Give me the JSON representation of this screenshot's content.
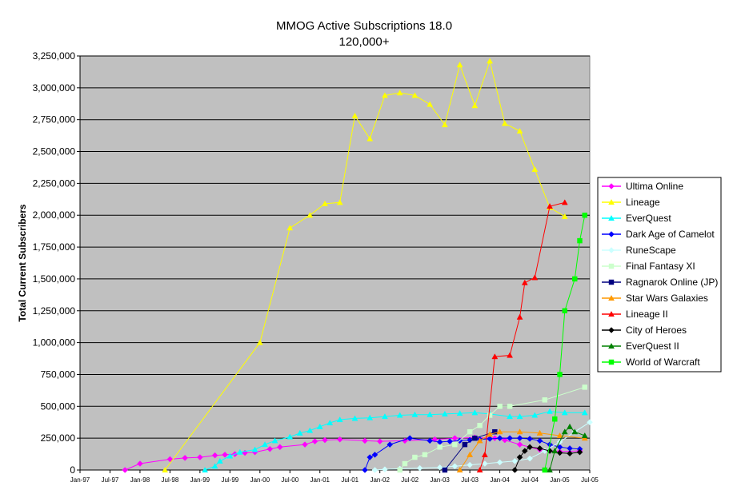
{
  "chart_data": {
    "type": "line",
    "title": "MMOG Active Subscriptions 18.0",
    "subtitle": "120,000+",
    "xlabel": "",
    "ylabel": "Total Current Subscribers",
    "ylim": [
      0,
      3250000
    ],
    "xlim": [
      "1997-01",
      "2005-07"
    ],
    "y_ticks": [
      {
        "value": 0,
        "label": "0"
      },
      {
        "value": 250000,
        "label": "250,000"
      },
      {
        "value": 500000,
        "label": "500,000"
      },
      {
        "value": 750000,
        "label": "750,000"
      },
      {
        "value": 1000000,
        "label": "1,000,000"
      },
      {
        "value": 1250000,
        "label": "1,250,000"
      },
      {
        "value": 1500000,
        "label": "1,500,000"
      },
      {
        "value": 1750000,
        "label": "1,750,000"
      },
      {
        "value": 2000000,
        "label": "2,000,000"
      },
      {
        "value": 2250000,
        "label": "2,250,000"
      },
      {
        "value": 2500000,
        "label": "2,500,000"
      },
      {
        "value": 2750000,
        "label": "2,750,000"
      },
      {
        "value": 3000000,
        "label": "3,000,000"
      },
      {
        "value": 3250000,
        "label": "3,250,000"
      }
    ],
    "x_ticks": [
      {
        "value": "1997-01",
        "label": "Jan-97"
      },
      {
        "value": "1997-07",
        "label": "Jul-97"
      },
      {
        "value": "1998-01",
        "label": "Jan-98"
      },
      {
        "value": "1998-07",
        "label": "Jul-98"
      },
      {
        "value": "1999-01",
        "label": "Jan-99"
      },
      {
        "value": "1999-07",
        "label": "Jul-99"
      },
      {
        "value": "2000-01",
        "label": "Jan-00"
      },
      {
        "value": "2000-07",
        "label": "Jul-00"
      },
      {
        "value": "2001-01",
        "label": "Jan-01"
      },
      {
        "value": "2001-07",
        "label": "Jul-01"
      },
      {
        "value": "2002-01",
        "label": "Jan-02"
      },
      {
        "value": "2002-07",
        "label": "Jul-02"
      },
      {
        "value": "2003-01",
        "label": "Jan-03"
      },
      {
        "value": "2003-07",
        "label": "Jul-03"
      },
      {
        "value": "2004-01",
        "label": "Jan-04"
      },
      {
        "value": "2004-07",
        "label": "Jul-04"
      },
      {
        "value": "2005-01",
        "label": "Jan-05"
      },
      {
        "value": "2005-07",
        "label": "Jul-05"
      }
    ],
    "grid": "horizontal",
    "legend_position": "right",
    "plot_background": "#c0c0c0",
    "series": [
      {
        "name": "Ultima Online",
        "color": "#ff00ff",
        "marker": "diamond",
        "points": [
          [
            "1997-10",
            0
          ],
          [
            "1998-01",
            50000
          ],
          [
            "1998-07",
            85000
          ],
          [
            "1998-10",
            95000
          ],
          [
            "1999-01",
            100000
          ],
          [
            "1999-04",
            115000
          ],
          [
            "1999-06",
            120000
          ],
          [
            "1999-08",
            125000
          ],
          [
            "1999-10",
            135000
          ],
          [
            "1999-12",
            140000
          ],
          [
            "2000-03",
            165000
          ],
          [
            "2000-05",
            180000
          ],
          [
            "2000-10",
            200000
          ],
          [
            "2000-12",
            225000
          ],
          [
            "2001-02",
            235000
          ],
          [
            "2001-05",
            240000
          ],
          [
            "2001-10",
            230000
          ],
          [
            "2002-01",
            225000
          ],
          [
            "2002-06",
            230000
          ],
          [
            "2002-12",
            240000
          ],
          [
            "2003-04",
            250000
          ],
          [
            "2003-08",
            255000
          ],
          [
            "2003-12",
            250000
          ],
          [
            "2004-02",
            235000
          ],
          [
            "2004-05",
            200000
          ],
          [
            "2004-09",
            160000
          ],
          [
            "2005-01",
            145000
          ],
          [
            "2005-05",
            150000
          ]
        ]
      },
      {
        "name": "Lineage",
        "color": "#ffff00",
        "marker": "triangle",
        "points": [
          [
            "1998-06",
            0
          ],
          [
            "2000-01",
            1000000
          ],
          [
            "2000-07",
            1900000
          ],
          [
            "2000-11",
            2000000
          ],
          [
            "2001-02",
            2090000
          ],
          [
            "2001-05",
            2100000
          ],
          [
            "2001-08",
            2780000
          ],
          [
            "2001-11",
            2600000
          ],
          [
            "2002-02",
            2940000
          ],
          [
            "2002-05",
            2960000
          ],
          [
            "2002-08",
            2940000
          ],
          [
            "2002-11",
            2870000
          ],
          [
            "2003-02",
            2710000
          ],
          [
            "2003-05",
            3180000
          ],
          [
            "2003-08",
            2860000
          ],
          [
            "2003-11",
            3210000
          ],
          [
            "2004-02",
            2720000
          ],
          [
            "2004-05",
            2660000
          ],
          [
            "2004-08",
            2360000
          ],
          [
            "2004-11",
            2060000
          ],
          [
            "2005-02",
            1990000
          ]
        ]
      },
      {
        "name": "EverQuest",
        "color": "#00ffff",
        "marker": "triangle",
        "points": [
          [
            "1999-02",
            0
          ],
          [
            "1999-04",
            30000
          ],
          [
            "1999-05",
            70000
          ],
          [
            "1999-07",
            110000
          ],
          [
            "1999-09",
            140000
          ],
          [
            "1999-12",
            160000
          ],
          [
            "2000-02",
            200000
          ],
          [
            "2000-04",
            230000
          ],
          [
            "2000-07",
            260000
          ],
          [
            "2000-09",
            290000
          ],
          [
            "2000-11",
            310000
          ],
          [
            "2001-01",
            340000
          ],
          [
            "2001-03",
            370000
          ],
          [
            "2001-05",
            395000
          ],
          [
            "2001-08",
            405000
          ],
          [
            "2001-11",
            410000
          ],
          [
            "2002-02",
            420000
          ],
          [
            "2002-05",
            430000
          ],
          [
            "2002-08",
            435000
          ],
          [
            "2002-11",
            435000
          ],
          [
            "2003-02",
            440000
          ],
          [
            "2003-05",
            445000
          ],
          [
            "2003-08",
            450000
          ],
          [
            "2003-11",
            440000
          ],
          [
            "2004-03",
            420000
          ],
          [
            "2004-05",
            420000
          ],
          [
            "2004-08",
            430000
          ],
          [
            "2004-11",
            460000
          ],
          [
            "2005-02",
            450000
          ],
          [
            "2005-06",
            450000
          ]
        ]
      },
      {
        "name": "Dark Age of Camelot",
        "color": "#0000ff",
        "marker": "diamond",
        "points": [
          [
            "2001-10",
            0
          ],
          [
            "2001-11",
            100000
          ],
          [
            "2001-12",
            120000
          ],
          [
            "2002-03",
            200000
          ],
          [
            "2002-07",
            250000
          ],
          [
            "2002-11",
            230000
          ],
          [
            "2003-01",
            220000
          ],
          [
            "2003-03",
            225000
          ],
          [
            "2003-05",
            230000
          ],
          [
            "2003-07",
            235000
          ],
          [
            "2003-09",
            240000
          ],
          [
            "2003-11",
            245000
          ],
          [
            "2004-01",
            250000
          ],
          [
            "2004-03",
            250000
          ],
          [
            "2004-05",
            250000
          ],
          [
            "2004-07",
            245000
          ],
          [
            "2004-09",
            230000
          ],
          [
            "2004-11",
            200000
          ],
          [
            "2005-01",
            180000
          ],
          [
            "2005-03",
            170000
          ],
          [
            "2005-05",
            165000
          ]
        ]
      },
      {
        "name": "RuneScape",
        "color": "#ccffff",
        "marker": "diamond",
        "points": [
          [
            "2001-12",
            0
          ],
          [
            "2002-02",
            5000
          ],
          [
            "2002-05",
            10000
          ],
          [
            "2002-09",
            15000
          ],
          [
            "2003-01",
            20000
          ],
          [
            "2003-04",
            30000
          ],
          [
            "2003-07",
            40000
          ],
          [
            "2003-10",
            50000
          ],
          [
            "2004-01",
            60000
          ],
          [
            "2004-04",
            70000
          ],
          [
            "2004-07",
            90000
          ],
          [
            "2004-10",
            150000
          ],
          [
            "2005-01",
            220000
          ],
          [
            "2005-04",
            300000
          ],
          [
            "2005-07",
            375000
          ]
        ]
      },
      {
        "name": "Final Fantasy XI",
        "color": "#ccffcc",
        "marker": "square",
        "points": [
          [
            "2002-05",
            0
          ],
          [
            "2002-06",
            50000
          ],
          [
            "2002-08",
            100000
          ],
          [
            "2002-10",
            120000
          ],
          [
            "2003-01",
            180000
          ],
          [
            "2003-04",
            200000
          ],
          [
            "2003-07",
            300000
          ],
          [
            "2003-09",
            350000
          ],
          [
            "2003-11",
            430000
          ],
          [
            "2004-01",
            500000
          ],
          [
            "2004-03",
            500000
          ],
          [
            "2004-10",
            550000
          ],
          [
            "2005-06",
            650000
          ]
        ]
      },
      {
        "name": "Ragnarok Online (JP)",
        "color": "#000080",
        "marker": "square",
        "points": [
          [
            "2003-02",
            0
          ],
          [
            "2003-06",
            200000
          ],
          [
            "2003-08",
            250000
          ],
          [
            "2003-12",
            300000
          ]
        ]
      },
      {
        "name": "Star Wars Galaxies",
        "color": "#ff9900",
        "marker": "triangle",
        "points": [
          [
            "2003-05",
            0
          ],
          [
            "2003-07",
            120000
          ],
          [
            "2003-09",
            230000
          ],
          [
            "2003-11",
            280000
          ],
          [
            "2004-01",
            300000
          ],
          [
            "2004-05",
            300000
          ],
          [
            "2004-09",
            290000
          ],
          [
            "2005-01",
            270000
          ],
          [
            "2005-06",
            250000
          ]
        ]
      },
      {
        "name": "Lineage II",
        "color": "#ff0000",
        "marker": "triangle",
        "points": [
          [
            "2003-09",
            0
          ],
          [
            "2003-10",
            120000
          ],
          [
            "2003-12",
            890000
          ],
          [
            "2004-03",
            900000
          ],
          [
            "2004-05",
            1200000
          ],
          [
            "2004-06",
            1470000
          ],
          [
            "2004-08",
            1510000
          ],
          [
            "2004-11",
            2070000
          ],
          [
            "2005-02",
            2100000
          ]
        ]
      },
      {
        "name": "City of Heroes",
        "color": "#000000",
        "marker": "diamond",
        "points": [
          [
            "2004-04",
            0
          ],
          [
            "2004-05",
            100000
          ],
          [
            "2004-06",
            150000
          ],
          [
            "2004-07",
            180000
          ],
          [
            "2004-09",
            170000
          ],
          [
            "2004-11",
            150000
          ],
          [
            "2005-01",
            135000
          ],
          [
            "2005-03",
            130000
          ],
          [
            "2005-05",
            140000
          ]
        ]
      },
      {
        "name": "EverQuest II",
        "color": "#008000",
        "marker": "triangle",
        "points": [
          [
            "2004-11",
            0
          ],
          [
            "2004-12",
            150000
          ],
          [
            "2005-02",
            300000
          ],
          [
            "2005-03",
            340000
          ],
          [
            "2005-04",
            300000
          ],
          [
            "2005-06",
            270000
          ]
        ]
      },
      {
        "name": "World of Warcraft",
        "color": "#00ff00",
        "marker": "square",
        "points": [
          [
            "2004-10",
            0
          ],
          [
            "2004-12",
            400000
          ],
          [
            "2005-01",
            750000
          ],
          [
            "2005-02",
            1250000
          ],
          [
            "2005-04",
            1500000
          ],
          [
            "2005-05",
            1800000
          ],
          [
            "2005-06",
            2000000
          ]
        ]
      }
    ]
  }
}
